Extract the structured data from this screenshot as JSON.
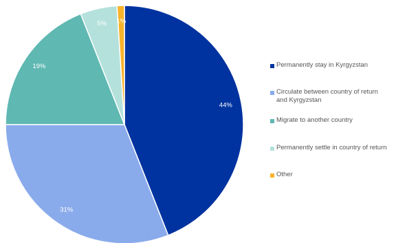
{
  "chart_data": {
    "type": "pie",
    "categories": [
      "Permanently stay in Kyrgyzstan",
      "Circulate between country of return and Kyrgyzstan",
      "Migrate to another country",
      "Permanently settle in country of return",
      "Other"
    ],
    "values": [
      44,
      31,
      19,
      5,
      1
    ],
    "labels": [
      "44%",
      "31%",
      "19%",
      "5%",
      "1%"
    ],
    "colors": [
      "#0033a0",
      "#8aabeb",
      "#5fb8b2",
      "#b4e1dc",
      "#f7b32b"
    ],
    "legend": {
      "position": "right",
      "lines": [
        [
          "Permanently stay in Kyrgyzstan"
        ],
        [
          "Circulate between country of return",
          "and Kyrgyzstan"
        ],
        [
          "Migrate to another country"
        ],
        [
          "Permanently settle in country of return"
        ],
        [
          "Other"
        ]
      ]
    },
    "start_angle": "12 o'clock",
    "direction": "clockwise"
  }
}
